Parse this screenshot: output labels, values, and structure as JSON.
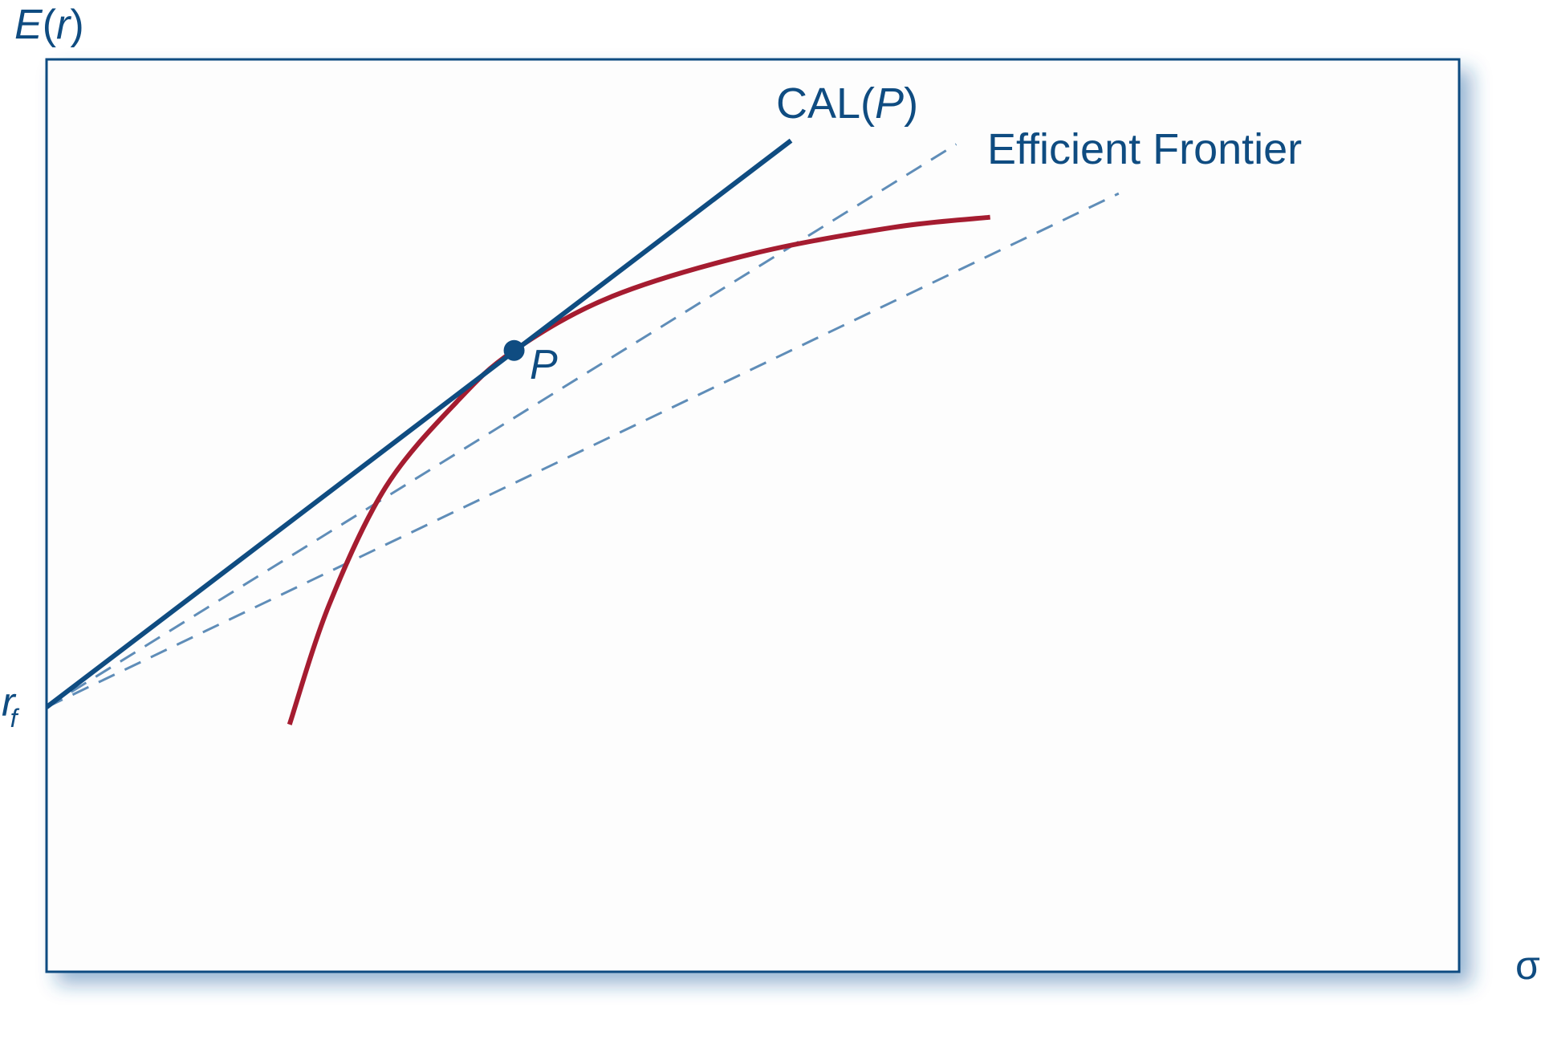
{
  "chart_data": {
    "type": "line",
    "title": "",
    "xlabel": "σ",
    "ylabel_main": "E",
    "ylabel_paren_open": "(",
    "ylabel_var": "r",
    "ylabel_paren_close": ")",
    "rf_label_main": "r",
    "rf_label_sub": "f",
    "grid": false,
    "xlim": [
      0,
      100
    ],
    "ylim": [
      0,
      100
    ],
    "risk_free": {
      "x": 0,
      "y": 29
    },
    "series": [
      {
        "name": "Efficient Frontier",
        "kind": "frontier",
        "color": "#a51c30",
        "x": [
          17.2,
          20,
          24,
          29,
          33.1,
          40,
          50,
          60,
          66.8
        ],
        "y": [
          27.1,
          40.2,
          53.1,
          62.4,
          68.1,
          74.0,
          78.7,
          81.6,
          82.7
        ]
      },
      {
        "name_prefix": "CAL(",
        "name_var": "P",
        "name_suffix": ")",
        "kind": "cal",
        "color": "#0f4c81",
        "x": [
          0,
          52.7
        ],
        "y": [
          29,
          91.1
        ]
      },
      {
        "name": "",
        "kind": "dashed",
        "color": "#5f8db8",
        "x": [
          0,
          64.4
        ],
        "y": [
          29,
          90.7
        ]
      },
      {
        "name": "",
        "kind": "dashed",
        "color": "#5f8db8",
        "x": [
          0,
          75.9
        ],
        "y": [
          29,
          85.3
        ]
      }
    ],
    "points": [
      {
        "label": "P",
        "x": 33.1,
        "y": 68.1,
        "color": "#0f4c81"
      }
    ]
  }
}
